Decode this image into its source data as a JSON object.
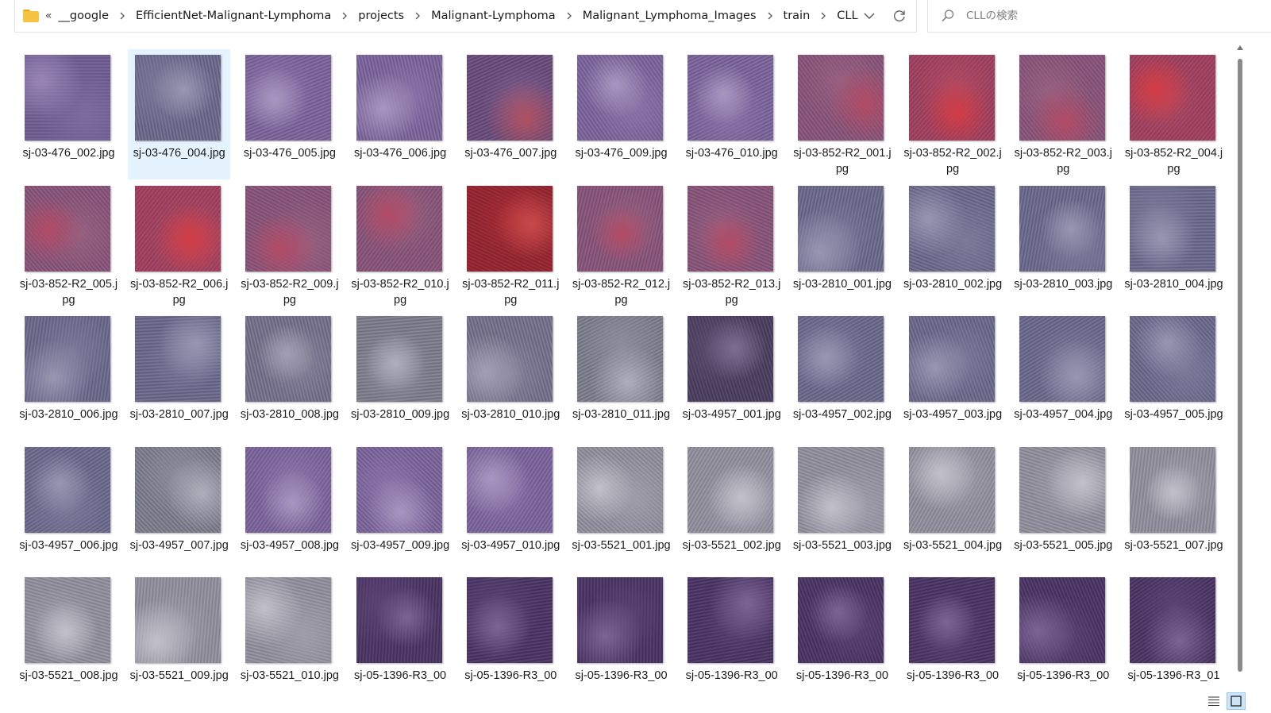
{
  "address_bar": {
    "overflow": "«",
    "crumbs": [
      "__google",
      "EfficientNet-Malignant-Lymphoma",
      "projects",
      "Malignant-Lymphoma",
      "Malignant_Lymphoma_Images",
      "train",
      "CLL"
    ]
  },
  "search": {
    "placeholder": "CLLの検索"
  },
  "colors": {
    "selection": "#e5f3ff",
    "folder": "#f6c343"
  },
  "icons": {
    "folder": "folder-icon",
    "chevron": "chevron-right-icon",
    "dropdown": "chevron-down-icon",
    "refresh": "refresh-icon",
    "search": "search-icon",
    "details": "details-view-icon",
    "tiles": "large-icons-view-icon"
  },
  "files": [
    {
      "name": "sj-03-476_002.jpg",
      "tone": "purple"
    },
    {
      "name": "sj-03-476_004.jpg",
      "tone": "slate",
      "selected": true
    },
    {
      "name": "sj-03-476_005.jpg",
      "tone": "violet"
    },
    {
      "name": "sj-03-476_006.jpg",
      "tone": "violet"
    },
    {
      "name": "sj-03-476_007.jpg",
      "tone": "plum"
    },
    {
      "name": "sj-03-476_009.jpg",
      "tone": "violet"
    },
    {
      "name": "sj-03-476_010.jpg",
      "tone": "violet"
    },
    {
      "name": "sj-03-852-R2_001.jpg",
      "tone": "rosy"
    },
    {
      "name": "sj-03-852-R2_002.jpg",
      "tone": "red"
    },
    {
      "name": "sj-03-852-R2_003.jpg",
      "tone": "rosy"
    },
    {
      "name": "sj-03-852-R2_004.jpg",
      "tone": "red"
    },
    {
      "name": "sj-03-852-R2_005.jpg",
      "tone": "rosy"
    },
    {
      "name": "sj-03-852-R2_006.jpg",
      "tone": "red"
    },
    {
      "name": "sj-03-852-R2_009.jpg",
      "tone": "rosy"
    },
    {
      "name": "sj-03-852-R2_010.jpg",
      "tone": "rosy"
    },
    {
      "name": "sj-03-852-R2_011.jpg",
      "tone": "crimson"
    },
    {
      "name": "sj-03-852-R2_012.jpg",
      "tone": "rosy"
    },
    {
      "name": "sj-03-852-R2_013.jpg",
      "tone": "rosy"
    },
    {
      "name": "sj-03-2810_001.jpg",
      "tone": "slate"
    },
    {
      "name": "sj-03-2810_002.jpg",
      "tone": "slate"
    },
    {
      "name": "sj-03-2810_003.jpg",
      "tone": "slate"
    },
    {
      "name": "sj-03-2810_004.jpg",
      "tone": "slate"
    },
    {
      "name": "sj-03-2810_006.jpg",
      "tone": "slate"
    },
    {
      "name": "sj-03-2810_007.jpg",
      "tone": "slate"
    },
    {
      "name": "sj-03-2810_008.jpg",
      "tone": "grayviolet"
    },
    {
      "name": "sj-03-2810_009.jpg",
      "tone": "gray"
    },
    {
      "name": "sj-03-2810_010.jpg",
      "tone": "grayviolet"
    },
    {
      "name": "sj-03-2810_011.jpg",
      "tone": "gray"
    },
    {
      "name": "sj-03-4957_001.jpg",
      "tone": "dark"
    },
    {
      "name": "sj-03-4957_002.jpg",
      "tone": "slate"
    },
    {
      "name": "sj-03-4957_003.jpg",
      "tone": "slate"
    },
    {
      "name": "sj-03-4957_004.jpg",
      "tone": "slate"
    },
    {
      "name": "sj-03-4957_005.jpg",
      "tone": "slate"
    },
    {
      "name": "sj-03-4957_006.jpg",
      "tone": "slate"
    },
    {
      "name": "sj-03-4957_007.jpg",
      "tone": "gray"
    },
    {
      "name": "sj-03-4957_008.jpg",
      "tone": "violet"
    },
    {
      "name": "sj-03-4957_009.jpg",
      "tone": "violet"
    },
    {
      "name": "sj-03-4957_010.jpg",
      "tone": "violet"
    },
    {
      "name": "sj-03-5521_001.jpg",
      "tone": "lightgray"
    },
    {
      "name": "sj-03-5521_002.jpg",
      "tone": "lightgray"
    },
    {
      "name": "sj-03-5521_003.jpg",
      "tone": "lightgray"
    },
    {
      "name": "sj-03-5521_004.jpg",
      "tone": "lightgray"
    },
    {
      "name": "sj-03-5521_005.jpg",
      "tone": "lightgray"
    },
    {
      "name": "sj-03-5521_007.jpg",
      "tone": "lightgray"
    },
    {
      "name": "sj-03-5521_008.jpg",
      "tone": "lightgray"
    },
    {
      "name": "sj-03-5521_009.jpg",
      "tone": "lightgray"
    },
    {
      "name": "sj-03-5521_010.jpg",
      "tone": "lightgray"
    },
    {
      "name": "sj-05-1396-R3_00",
      "tone": "deepviolet"
    },
    {
      "name": "sj-05-1396-R3_00",
      "tone": "deepviolet"
    },
    {
      "name": "sj-05-1396-R3_00",
      "tone": "deepviolet"
    },
    {
      "name": "sj-05-1396-R3_00",
      "tone": "deepviolet"
    },
    {
      "name": "sj-05-1396-R3_00",
      "tone": "deepviolet"
    },
    {
      "name": "sj-05-1396-R3_00",
      "tone": "deepviolet"
    },
    {
      "name": "sj-05-1396-R3_00",
      "tone": "deepviolet"
    },
    {
      "name": "sj-05-1396-R3_01",
      "tone": "deepviolet"
    }
  ]
}
